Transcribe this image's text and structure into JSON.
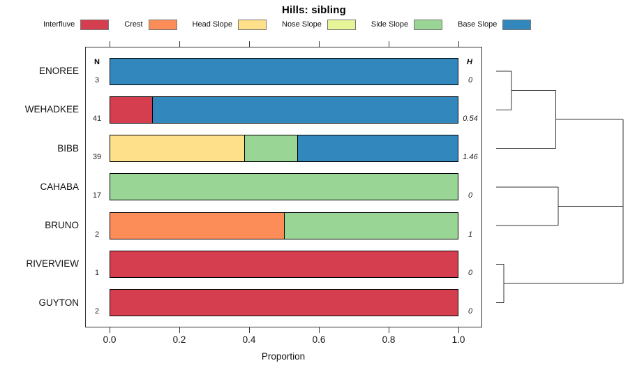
{
  "title": "Hills: sibling",
  "columns": {
    "n_header": "N",
    "h_header": "H"
  },
  "legend": [
    {
      "label": "Interfluve",
      "color": "#D53E4F"
    },
    {
      "label": "Crest",
      "color": "#FC8D59"
    },
    {
      "label": "Head Slope",
      "color": "#FEE08B"
    },
    {
      "label": "Nose Slope",
      "color": "#E6F598"
    },
    {
      "label": "Side Slope",
      "color": "#99D594"
    },
    {
      "label": "Base Slope",
      "color": "#3288BD"
    }
  ],
  "chart_data": {
    "type": "bar",
    "orientation": "horizontal-stacked",
    "title": "Hills: sibling",
    "xlabel": "Proportion",
    "xlim": [
      0,
      1
    ],
    "xticks": [
      "0.0",
      "0.2",
      "0.4",
      "0.6",
      "0.8",
      "1.0"
    ],
    "grid": false,
    "legend_position": "top",
    "classes": [
      "Interfluve",
      "Crest",
      "Head Slope",
      "Nose Slope",
      "Side Slope",
      "Base Slope"
    ],
    "class_colors": {
      "Interfluve": "#D53E4F",
      "Crest": "#FC8D59",
      "Head Slope": "#FEE08B",
      "Nose Slope": "#E6F598",
      "Side Slope": "#99D594",
      "Base Slope": "#3288BD"
    },
    "categories": [
      "ENOREE",
      "WEHADKEE",
      "BIBB",
      "CAHABA",
      "BRUNO",
      "RIVERVIEW",
      "GUYTON"
    ],
    "rows": [
      {
        "name": "ENOREE",
        "n": "3",
        "h": "0",
        "segments": [
          {
            "class": "Base Slope",
            "value": 1.0
          }
        ]
      },
      {
        "name": "WEHADKEE",
        "n": "41",
        "h": "0.54",
        "segments": [
          {
            "class": "Interfluve",
            "value": 0.12
          },
          {
            "class": "Base Slope",
            "value": 0.88
          }
        ]
      },
      {
        "name": "BIBB",
        "n": "39",
        "h": "1.46",
        "segments": [
          {
            "class": "Head Slope",
            "value": 0.385
          },
          {
            "class": "Side Slope",
            "value": 0.154
          },
          {
            "class": "Base Slope",
            "value": 0.461
          }
        ]
      },
      {
        "name": "CAHABA",
        "n": "17",
        "h": "0",
        "segments": [
          {
            "class": "Side Slope",
            "value": 1.0
          }
        ]
      },
      {
        "name": "BRUNO",
        "n": "2",
        "h": "1",
        "segments": [
          {
            "class": "Crest",
            "value": 0.5
          },
          {
            "class": "Side Slope",
            "value": 0.5
          }
        ]
      },
      {
        "name": "RIVERVIEW",
        "n": "1",
        "h": "0",
        "segments": [
          {
            "class": "Interfluve",
            "value": 1.0
          }
        ]
      },
      {
        "name": "GUYTON",
        "n": "2",
        "h": "0",
        "segments": [
          {
            "class": "Interfluve",
            "value": 1.0
          }
        ]
      }
    ]
  },
  "dendrogram": {
    "leaves": [
      "ENOREE",
      "WEHADKEE",
      "BIBB",
      "CAHABA",
      "BRUNO",
      "RIVERVIEW",
      "GUYTON"
    ],
    "merges": [
      {
        "id": "m1",
        "children": [
          "ENOREE",
          "WEHADKEE"
        ],
        "height": 0.12
      },
      {
        "id": "m2",
        "children": [
          "m1",
          "BIBB"
        ],
        "height": 0.47
      },
      {
        "id": "m3",
        "children": [
          "CAHABA",
          "BRUNO"
        ],
        "height": 0.49
      },
      {
        "id": "m4",
        "children": [
          "RIVERVIEW",
          "GUYTON"
        ],
        "height": 0.06
      },
      {
        "id": "m5",
        "children": [
          "m3",
          "m4"
        ],
        "height": 1.0
      },
      {
        "id": "m6",
        "children": [
          "m2",
          "m5"
        ],
        "height": 1.0
      }
    ]
  }
}
